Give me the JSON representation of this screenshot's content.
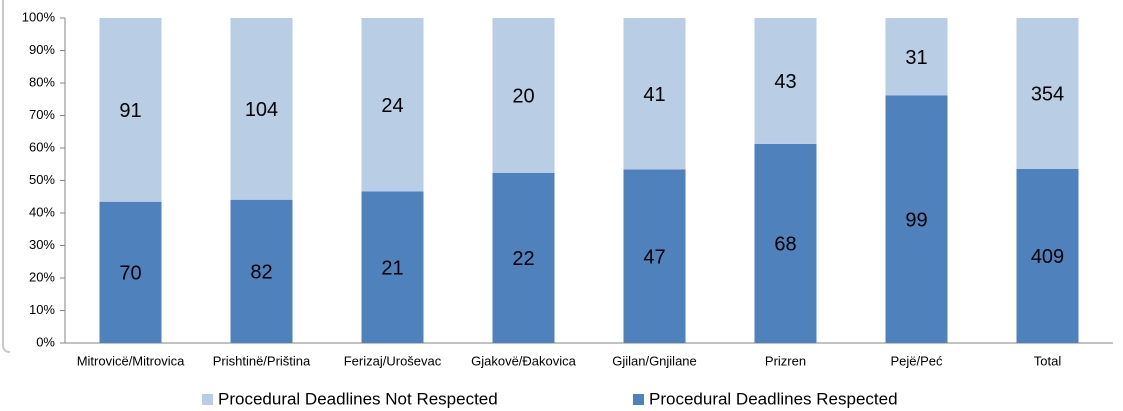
{
  "chart_data": {
    "type": "bar",
    "stacked": "percent",
    "categories": [
      "Mitrovicë/Mitrovica",
      "Prishtinë/Priština",
      "Ferizaj/Uroševac",
      "Gjakovë/Đakovica",
      "Gjilan/Gnjilane",
      "Prizren",
      "Pejë/Peć",
      "Total"
    ],
    "series": [
      {
        "name": "Procedural Deadlines Not Respected",
        "color": "#b9cde5",
        "values": [
          91,
          104,
          24,
          20,
          41,
          43,
          31,
          354
        ]
      },
      {
        "name": "Procedural Deadlines Respected",
        "color": "#4f81bd",
        "values": [
          70,
          82,
          21,
          22,
          47,
          68,
          99,
          409
        ]
      }
    ],
    "ylim": [
      0,
      100
    ],
    "yticks": [
      {
        "value": 0,
        "label": "0%"
      },
      {
        "value": 10,
        "label": "10%"
      },
      {
        "value": 20,
        "label": "20%"
      },
      {
        "value": 30,
        "label": "30%"
      },
      {
        "value": 40,
        "label": "40%"
      },
      {
        "value": 50,
        "label": "50%"
      },
      {
        "value": 60,
        "label": "60%"
      },
      {
        "value": 70,
        "label": "70%"
      },
      {
        "value": 80,
        "label": "80%"
      },
      {
        "value": 90,
        "label": "90%"
      },
      {
        "value": 100,
        "label": "100%"
      }
    ],
    "legend": "bottom"
  }
}
